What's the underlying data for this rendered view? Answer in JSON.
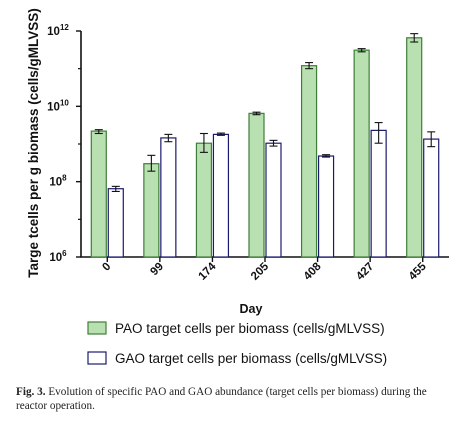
{
  "chart_data": {
    "type": "bar",
    "scale": "log",
    "ylabel": "Targe tcells per g biomass (cells/gMLVSS)",
    "xlabel": "Day",
    "ylim": [
      1000000,
      1000000000000
    ],
    "yticks": [
      {
        "value": 1000000,
        "base": "10",
        "exp": "6"
      },
      {
        "value": 100000000,
        "base": "10",
        "exp": "8"
      },
      {
        "value": 10000000000,
        "base": "10",
        "exp": "10"
      },
      {
        "value": 1000000000000,
        "base": "10",
        "exp": "12"
      }
    ],
    "categories": [
      "0",
      "99",
      "174",
      "205",
      "408",
      "427",
      "455"
    ],
    "series": [
      {
        "name": "PAO target cells per biomass (cells/gMLVSS)",
        "fill": "#b9e0b0",
        "stroke": "#3f7d3a",
        "values": [
          2200000000.0,
          300000000.0,
          1050000000.0,
          6500000000.0,
          120000000000.0,
          310000000000.0,
          660000000000.0
        ],
        "err_low": [
          1900000000.0,
          190000000.0,
          600000000.0,
          6000000000.0,
          100000000000.0,
          280000000000.0,
          510000000000.0
        ],
        "err_high": [
          2400000000.0,
          500000000.0,
          1900000000.0,
          7000000000.0,
          145000000000.0,
          340000000000.0,
          850000000000.0
        ]
      },
      {
        "name": "GAO target cells per biomass (cells/gMLVSS)",
        "fill": "#ffffff",
        "stroke": "#1a1a6e",
        "values": [
          65000000.0,
          1450000000.0,
          1800000000.0,
          1050000000.0,
          480000000.0,
          2300000000.0,
          1350000000.0
        ],
        "err_low": [
          55000000.0,
          1150000000.0,
          1700000000.0,
          880000000.0,
          450000000.0,
          1050000000.0,
          850000000.0
        ],
        "err_high": [
          75000000.0,
          1800000000.0,
          1950000000.0,
          1250000000.0,
          520000000.0,
          3700000000.0,
          2100000000.0
        ]
      }
    ]
  },
  "caption": {
    "label": "Fig. 3.",
    "text": "Evolution of specific PAO and GAO abundance (target cells per biomass) during the reactor operation."
  }
}
